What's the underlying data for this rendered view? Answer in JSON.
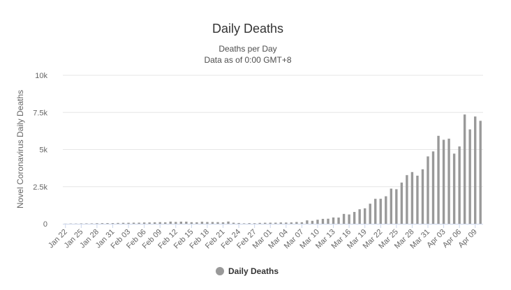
{
  "chart_data": {
    "type": "bar",
    "title": "Daily Deaths",
    "subtitle_lines": [
      "Deaths per Day",
      "Data as of 0:00 GMT+8"
    ],
    "ylabel": "Novel Coronavirus Daily Deaths",
    "xlabel": "",
    "ylim": [
      0,
      10000
    ],
    "yticks": [
      0,
      2500,
      5000,
      7500,
      10000
    ],
    "ytick_labels": [
      "0",
      "2.5k",
      "5k",
      "7.5k",
      "10k"
    ],
    "grid": "horizontal",
    "legend": "bottom",
    "bar_color": "#999999",
    "categories": [
      "Jan 22",
      "Jan 23",
      "Jan 24",
      "Jan 25",
      "Jan 26",
      "Jan 27",
      "Jan 28",
      "Jan 29",
      "Jan 30",
      "Jan 31",
      "Feb 01",
      "Feb 02",
      "Feb 03",
      "Feb 04",
      "Feb 05",
      "Feb 06",
      "Feb 07",
      "Feb 08",
      "Feb 09",
      "Feb 10",
      "Feb 11",
      "Feb 12",
      "Feb 13",
      "Feb 14",
      "Feb 15",
      "Feb 16",
      "Feb 17",
      "Feb 18",
      "Feb 19",
      "Feb 20",
      "Feb 21",
      "Feb 22",
      "Feb 23",
      "Feb 24",
      "Feb 25",
      "Feb 26",
      "Feb 27",
      "Feb 28",
      "Feb 29",
      "Mar 01",
      "Mar 02",
      "Mar 03",
      "Mar 04",
      "Mar 05",
      "Mar 06",
      "Mar 07",
      "Mar 08",
      "Mar 09",
      "Mar 10",
      "Mar 11",
      "Mar 12",
      "Mar 13",
      "Mar 14",
      "Mar 15",
      "Mar 16",
      "Mar 17",
      "Mar 18",
      "Mar 19",
      "Mar 20",
      "Mar 21",
      "Mar 22",
      "Mar 23",
      "Mar 24",
      "Mar 25",
      "Mar 26",
      "Mar 27",
      "Mar 28",
      "Mar 29",
      "Mar 30",
      "Mar 31",
      "Apr 01",
      "Apr 02",
      "Apr 03",
      "Apr 04",
      "Apr 05",
      "Apr 06",
      "Apr 07",
      "Apr 08",
      "Apr 09",
      "Apr 10"
    ],
    "xtick_labels": [
      "Jan 22",
      "Jan 25",
      "Jan 28",
      "Jan 31",
      "Feb 03",
      "Feb 06",
      "Feb 09",
      "Feb 12",
      "Feb 15",
      "Feb 18",
      "Feb 21",
      "Feb 24",
      "Feb 27",
      "Mar 01",
      "Mar 04",
      "Mar 07",
      "Mar 10",
      "Mar 13",
      "Mar 16",
      "Mar 19",
      "Mar 22",
      "Mar 25",
      "Mar 28",
      "Mar 31",
      "Apr 03",
      "Apr 06",
      "Apr 09"
    ],
    "series": [
      {
        "name": "Daily Deaths",
        "values": [
          8,
          16,
          15,
          24,
          26,
          26,
          38,
          43,
          46,
          45,
          57,
          64,
          66,
          73,
          73,
          86,
          89,
          97,
          108,
          97,
          146,
          121,
          143,
          142,
          105,
          98,
          136,
          115,
          118,
          109,
          97,
          150,
          71,
          52,
          29,
          44,
          37,
          58,
          68,
          72,
          73,
          88,
          81,
          91,
          116,
          103,
          228,
          199,
          273,
          331,
          341,
          424,
          418,
          664,
          627,
          796,
          978,
          1041,
          1353,
          1681,
          1684,
          1852,
          2368,
          2328,
          2776,
          3276,
          3484,
          3240,
          3670,
          4537,
          4873,
          5924,
          5657,
          5733,
          4724,
          5208,
          7359,
          6356,
          7225,
          6933
        ]
      }
    ]
  }
}
